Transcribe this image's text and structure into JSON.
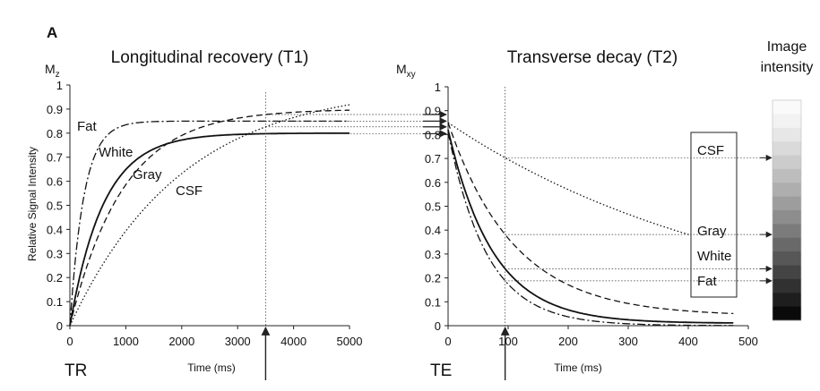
{
  "panel_label": "A",
  "chart_data": [
    {
      "type": "line",
      "title": "Longitudinal recovery (T1)",
      "ylabel_left": "Mz",
      "ylabel": "Relative Signal Intensity",
      "xlabel": "Time (ms)",
      "corner_label": "TR",
      "xlim": [
        0,
        5000
      ],
      "ylim": [
        0,
        1
      ],
      "xticks": [
        0,
        1000,
        2000,
        3000,
        4000,
        5000
      ],
      "yticks": [
        0,
        0.1,
        0.2,
        0.3,
        0.4,
        0.5,
        0.6,
        0.7,
        0.8,
        0.9,
        1
      ],
      "marker_x": 3500,
      "series": [
        {
          "name": "Fat",
          "style": "dashdot",
          "M0": 0.85,
          "T1": 250
        },
        {
          "name": "White",
          "style": "solid",
          "M0": 0.8,
          "T1": 600
        },
        {
          "name": "Gray",
          "style": "dashed",
          "M0": 0.9,
          "T1": 950
        },
        {
          "name": "CSF",
          "style": "dotted",
          "M0": 1.0,
          "T1": 2000
        }
      ]
    },
    {
      "type": "line",
      "title": "Transverse decay (T2)",
      "ylabel_left": "Mxy",
      "xlabel": "Time (ms)",
      "corner_label": "TE",
      "xlim": [
        0,
        500
      ],
      "ylim": [
        0,
        1
      ],
      "xticks": [
        0,
        100,
        200,
        300,
        400,
        500
      ],
      "yticks": [
        0,
        0.1,
        0.2,
        0.3,
        0.4,
        0.5,
        0.6,
        0.7,
        0.8,
        0.9,
        1
      ],
      "marker_x": 95,
      "x_end": 475,
      "series": [
        {
          "name": "CSF",
          "style": "dotted",
          "A": 0.85,
          "floor": 0,
          "T2": 500
        },
        {
          "name": "Gray",
          "style": "dashed",
          "A": 0.85,
          "floor": 0.04,
          "T2": 110
        },
        {
          "name": "White",
          "style": "solid",
          "A": 0.82,
          "floor": 0.01,
          "T2": 75
        },
        {
          "name": "Fat",
          "style": "dashdot",
          "A": 0.81,
          "floor": 0,
          "T2": 65
        }
      ]
    }
  ],
  "legend_box": [
    "CSF",
    "Gray",
    "White",
    "Fat"
  ],
  "intensity_scale": {
    "title_line1": "Image",
    "title_line2": "intensity",
    "levels": 16
  }
}
